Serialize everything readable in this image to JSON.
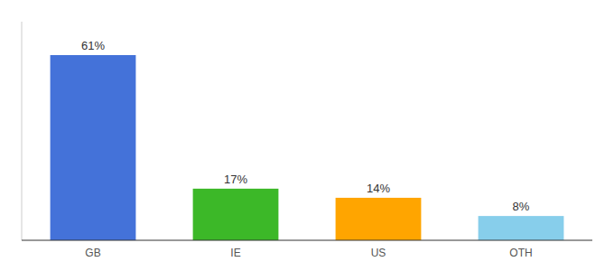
{
  "chart_data": {
    "type": "bar",
    "categories": [
      "GB",
      "IE",
      "US",
      "OTH"
    ],
    "values": [
      61,
      17,
      14,
      8
    ],
    "value_labels": [
      "61%",
      "17%",
      "14%",
      "8%"
    ],
    "colors": [
      "#4472D9",
      "#3CB828",
      "#FFA500",
      "#87CEEB"
    ],
    "ylim": [
      0,
      72
    ],
    "grid": false,
    "data_labels": true,
    "tick_labels": "x"
  }
}
